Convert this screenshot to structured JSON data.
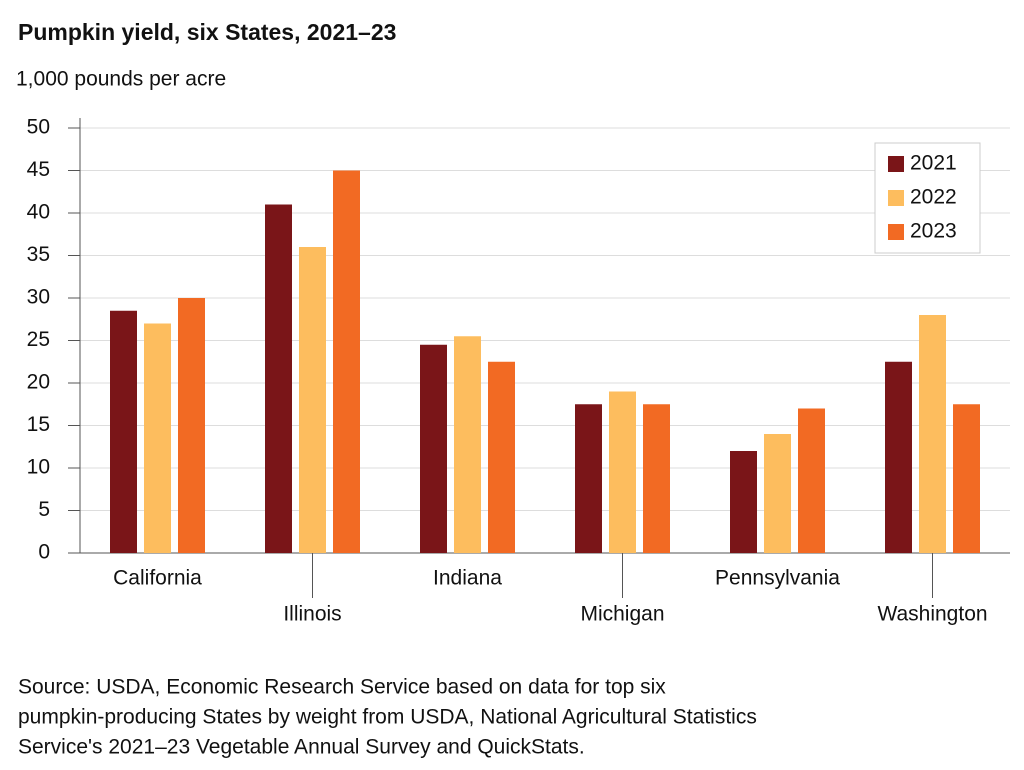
{
  "chart_data": {
    "type": "bar",
    "title": "Pumpkin yield, six States, 2021–23",
    "subtitle": "1,000 pounds per acre",
    "categories": [
      "California",
      "Illinois",
      "Indiana",
      "Michigan",
      "Pennsylvania",
      "Washington"
    ],
    "series": [
      {
        "name": "2021",
        "color": "#7a1518",
        "values": [
          28.5,
          41,
          24.5,
          17.5,
          12,
          22.5
        ]
      },
      {
        "name": "2022",
        "color": "#fdbd5e",
        "values": [
          27,
          36,
          25.5,
          19,
          14,
          28
        ]
      },
      {
        "name": "2023",
        "color": "#f26a23",
        "values": [
          30,
          45,
          22.5,
          17.5,
          17,
          17.5
        ]
      }
    ],
    "ylim": [
      0,
      50
    ],
    "yticks": [
      0,
      5,
      10,
      15,
      20,
      25,
      30,
      35,
      40,
      45,
      50
    ],
    "grid": true,
    "legend": "top-right",
    "source": [
      "Source: USDA, Economic Research Service based on data for top six",
      "pumpkin-producing States by weight from USDA, National Agricultural Statistics",
      "Service's 2021–23 Vegetable Annual Survey and QuickStats."
    ]
  }
}
